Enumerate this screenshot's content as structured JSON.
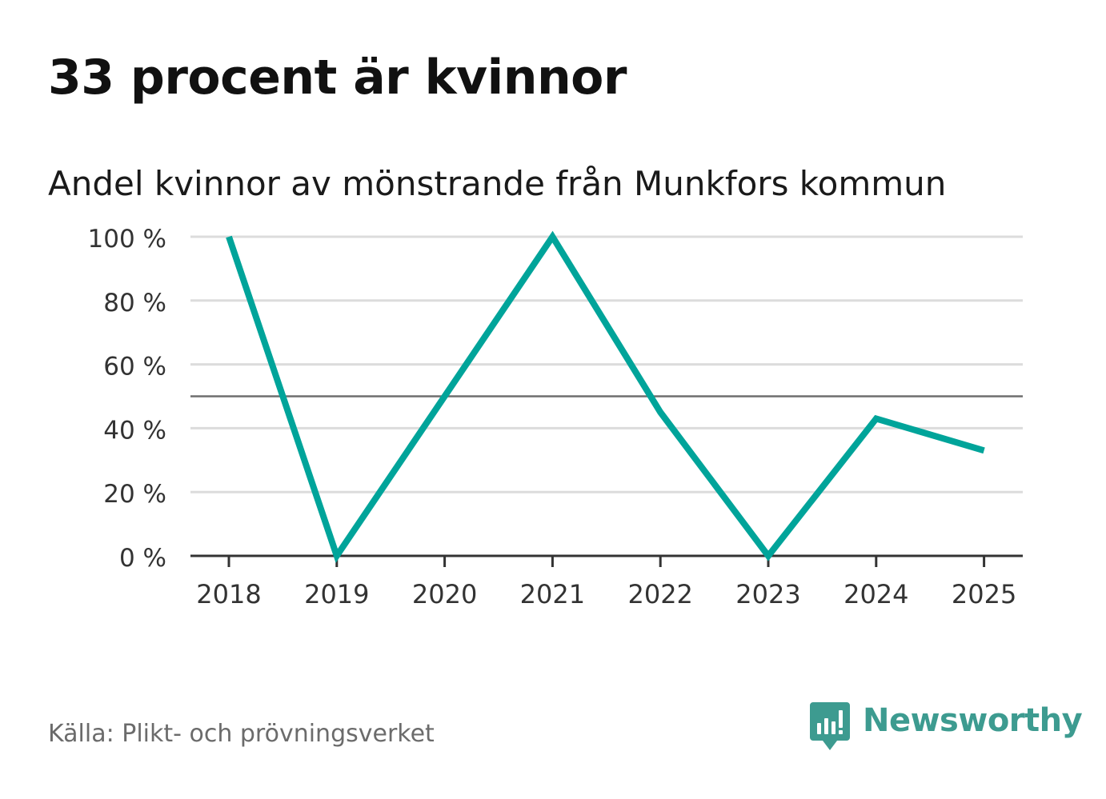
{
  "header": {
    "title": "33 procent är kvinnor",
    "subtitle": "Andel kvinnor av mönstrande från Munkfors kommun"
  },
  "footer": {
    "source": "Källa: Plikt- och prövningsverket",
    "brand": "Newsworthy",
    "brand_icon": "newsworthy-logo-icon"
  },
  "colors": {
    "series": "#00a49a",
    "grid": "#dcdcdc",
    "reference": "#6e6e6e",
    "axis": "#333333",
    "brand": "#3d9b90"
  },
  "chart_data": {
    "type": "line",
    "title": "33 procent är kvinnor",
    "subtitle": "Andel kvinnor av mönstrande från Munkfors kommun",
    "x": [
      "2018",
      "2019",
      "2020",
      "2021",
      "2022",
      "2023",
      "2024",
      "2025"
    ],
    "series": [
      {
        "values": [
          100,
          0,
          50,
          100,
          45,
          0,
          43,
          33
        ]
      }
    ],
    "ylim": [
      0,
      100
    ],
    "yticks": [
      0,
      20,
      40,
      60,
      80,
      100
    ],
    "ytick_labels": [
      "0 %",
      "20 %",
      "40 %",
      "60 %",
      "80 %",
      "100 %"
    ],
    "reference_line": 50,
    "grid": true,
    "legend": "none",
    "xlabel": "",
    "ylabel": ""
  }
}
